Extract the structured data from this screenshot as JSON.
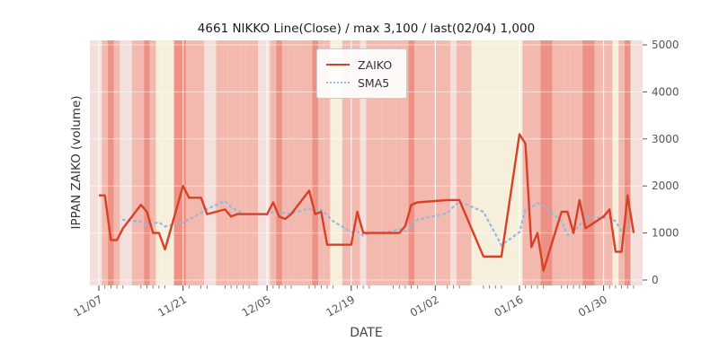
{
  "title": "4661 NIKKO Line(Close) / max 3,100 / last(02/04) 1,000",
  "xlabel": "DATE",
  "ylabel": "IPPAN ZAIKO (volume)",
  "legend": {
    "zaiko": "ZAIKO",
    "sma5": "SMA5"
  },
  "colors": {
    "zaiko": "#d64127",
    "sma5": "#92b9dd",
    "tick_text": "#555555",
    "grid": "#ffffff"
  },
  "chart_data": {
    "type": "line",
    "title": "4661 NIKKO Line(Close) / max 3,100 / last(02/04) 1,000",
    "xlabel": "DATE",
    "ylabel": "IPPAN ZAIKO (volume)",
    "ylim": [
      0,
      5000
    ],
    "y_ticks": [
      0,
      1000,
      2000,
      3000,
      4000,
      5000
    ],
    "y_tick_side": "right",
    "x_tick_labels": [
      "11/07",
      "11/21",
      "12/05",
      "12/19",
      "01/02",
      "01/16",
      "01/30"
    ],
    "grid": true,
    "legend_position": "top-center",
    "dates": [
      "11/07",
      "11/08",
      "11/09",
      "11/10",
      "11/11",
      "11/14",
      "11/15",
      "11/16",
      "11/17",
      "11/18",
      "11/21",
      "11/22",
      "11/24",
      "11/25",
      "11/28",
      "11/29",
      "11/30",
      "12/01",
      "12/02",
      "12/05",
      "12/06",
      "12/07",
      "12/08",
      "12/09",
      "12/12",
      "12/13",
      "12/14",
      "12/15",
      "12/16",
      "12/19",
      "12/20",
      "12/21",
      "12/22",
      "12/26",
      "12/27",
      "12/28",
      "12/29",
      "12/30",
      "01/04",
      "01/05",
      "01/06",
      "01/10",
      "01/11",
      "01/12",
      "01/13",
      "01/16",
      "01/17",
      "01/18",
      "01/19",
      "01/20",
      "01/23",
      "01/24",
      "01/25",
      "01/26",
      "01/27",
      "01/30",
      "01/31",
      "02/01",
      "02/02",
      "02/03",
      "02/04"
    ],
    "series": [
      {
        "name": "ZAIKO",
        "style": "solid",
        "values": [
          1800,
          1800,
          850,
          850,
          1100,
          1600,
          1450,
          1000,
          1000,
          650,
          2000,
          1750,
          1750,
          1400,
          1500,
          1350,
          1400,
          1400,
          1400,
          1400,
          1650,
          1350,
          1300,
          1400,
          1900,
          1400,
          1450,
          750,
          750,
          750,
          1450,
          1000,
          1000,
          1000,
          1000,
          1150,
          1600,
          1650,
          1700,
          1700,
          1700,
          500,
          500,
          500,
          500,
          3100,
          2900,
          700,
          1000,
          200,
          1450,
          1450,
          1000,
          1700,
          1100,
          1350,
          1500,
          600,
          600,
          1800,
          1000
        ]
      },
      {
        "name": "SMA5",
        "style": "dotted",
        "window": 5,
        "values": [
          null,
          null,
          null,
          null,
          1280,
          1240,
          1170,
          1200,
          1230,
          1140,
          1220,
          1280,
          1430,
          1510,
          1680,
          1550,
          1480,
          1410,
          1410,
          1390,
          1450,
          1440,
          1420,
          1420,
          1520,
          1470,
          1490,
          1380,
          1250,
          1020,
          1030,
          940,
          990,
          1040,
          1090,
          1030,
          1150,
          1280,
          1420,
          1560,
          1670,
          1450,
          1220,
          980,
          740,
          1020,
          1500,
          1540,
          1640,
          1580,
          1250,
          960,
          1020,
          1160,
          1340,
          1320,
          1330,
          1250,
          1030,
          1170,
          1100
        ]
      }
    ],
    "max_value": 3100,
    "last_label": "last(02/04) 1,000",
    "band_palette": [
      "#f3dfdb",
      "#f3b9af",
      "#ec9184",
      "#f5efdc"
    ],
    "band_color_index": [
      0,
      1,
      2,
      1,
      0,
      1,
      2,
      1,
      3,
      3,
      2,
      1,
      1,
      0,
      1,
      1,
      1,
      1,
      1,
      0,
      1,
      2,
      1,
      1,
      1,
      2,
      1,
      1,
      3,
      1,
      1,
      0,
      1,
      1,
      1,
      1,
      2,
      1,
      1,
      0,
      1,
      3,
      3,
      3,
      3,
      3,
      1,
      1,
      1,
      2,
      1,
      1,
      1,
      1,
      2,
      1,
      1,
      3,
      1,
      2,
      0
    ]
  }
}
